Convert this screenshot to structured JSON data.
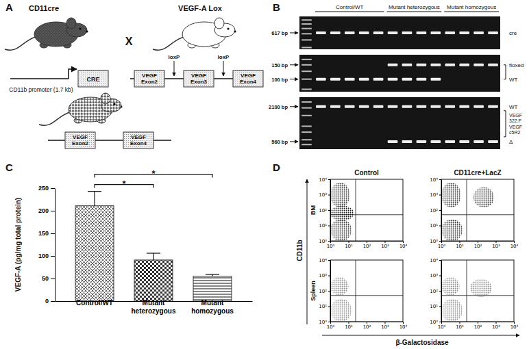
{
  "panel_a": {
    "label": "A",
    "parent1": {
      "name": "CD11cre",
      "promoter": "CD11b promoter (1.7 kb)",
      "gene": "CRE"
    },
    "cross": "X",
    "parent2": {
      "name": "VEGF-A Lox",
      "exons": [
        "VEGF Exon2",
        "VEGF Exon3",
        "VEGF Exon4"
      ],
      "sites": [
        "loxP",
        "loxP"
      ]
    },
    "offspring": {
      "exons": [
        "VEGF Exon2",
        "VEGF Exon4"
      ]
    }
  },
  "panel_b": {
    "label": "B",
    "groups": [
      {
        "name": "Control/WT",
        "lanes": 5
      },
      {
        "name": "Mutant heterozygous",
        "lanes": 4
      },
      {
        "name": "Mutant homozygous",
        "lanes": 4
      }
    ],
    "gels": [
      {
        "ylim": [
          1000,
          380
        ],
        "ladder": [
          900,
          800,
          700,
          600,
          500,
          400
        ],
        "size_labels": [
          {
            "value": 617,
            "label": "617 bp"
          }
        ],
        "band_labels": [
          {
            "value": 617,
            "label": "cre"
          }
        ],
        "lanes": [
          [
            617
          ],
          [
            617
          ],
          [
            617
          ],
          [
            617
          ],
          [
            617
          ],
          [
            617
          ],
          [
            617
          ],
          [
            617
          ],
          [
            617
          ],
          [
            617
          ],
          [
            617
          ],
          [
            617
          ],
          [
            617
          ]
        ]
      },
      {
        "ylim": [
          200,
          70
        ],
        "ladder": [
          175,
          150,
          125,
          100,
          75
        ],
        "size_labels": [
          {
            "value": 150,
            "label": "150 bp"
          },
          {
            "value": 100,
            "label": "100 bp"
          }
        ],
        "band_labels": [
          {
            "value": 150,
            "label": "floxed"
          },
          {
            "value": 100,
            "label": "WT"
          }
        ],
        "lanes": [
          [
            100
          ],
          [
            100
          ],
          [
            100
          ],
          [
            100
          ],
          [
            100
          ],
          [
            150,
            100
          ],
          [
            150,
            100
          ],
          [
            150,
            100
          ],
          [
            150,
            100
          ],
          [
            150
          ],
          [
            150
          ],
          [
            150
          ],
          [
            150
          ]
        ]
      },
      {
        "ylim": [
          3000,
          420
        ],
        "ladder": [
          2500,
          2000,
          1500,
          1000,
          800,
          600,
          500
        ],
        "size_labels": [
          {
            "value": 2100,
            "label": "2100 bp"
          },
          {
            "value": 560,
            "label": "560 bp"
          }
        ],
        "band_labels": [
          {
            "value": 2100,
            "label": "WT"
          },
          {
            "value": 560,
            "label": "Δ"
          }
        ],
        "primers": [
          "VEGF 322.F",
          "VEGF c5R2"
        ],
        "lanes": [
          [
            2100
          ],
          [
            2100
          ],
          [
            2100
          ],
          [
            2100
          ],
          [
            2100
          ],
          [
            2100,
            560
          ],
          [
            2100,
            560
          ],
          [
            2100,
            560
          ],
          [
            2100,
            560
          ],
          [
            2100,
            560
          ],
          [
            2100,
            560
          ],
          [
            2100,
            560
          ],
          [
            2100,
            560
          ]
        ]
      }
    ]
  },
  "panel_c": {
    "label": "C"
  },
  "chart_data": {
    "type": "bar",
    "categories": [
      "Control/WT",
      "Mutant heterozygous",
      "Mutant homozygous"
    ],
    "values": [
      211,
      91,
      55
    ],
    "errors": [
      32,
      15,
      4
    ],
    "ylabel": "VEGF-A (pg/mg total protein)",
    "ylim": [
      0,
      250
    ],
    "yticks": [
      0,
      50,
      100,
      150,
      200,
      250
    ],
    "color": "#333333",
    "annotations": [
      {
        "between": [
          "Control/WT",
          "Mutant heterozygous"
        ],
        "label": "*"
      },
      {
        "between": [
          "Control/WT",
          "Mutant homozygous"
        ],
        "label": "*"
      }
    ]
  },
  "panel_d": {
    "label": "D",
    "columns": [
      "Control",
      "CD11cre+LacZ"
    ],
    "rows": [
      "BM",
      "Spleen"
    ],
    "xlabel": "β-Galactosidase",
    "ylabel": "CD11b",
    "xlim": [
      1,
      10000
    ],
    "ylim": [
      1,
      10000
    ],
    "xticks": [
      {
        "value": 1,
        "label": "10⁰"
      },
      {
        "value": 10,
        "label": "10¹"
      },
      {
        "value": 100,
        "label": "10²"
      },
      {
        "value": 1000,
        "label": "10³"
      },
      {
        "value": 10000,
        "label": "10⁴"
      }
    ],
    "yticks": [
      {
        "value": 1,
        "label": "10⁰"
      },
      {
        "value": 10,
        "label": "10¹"
      },
      {
        "value": 100,
        "label": "10²"
      },
      {
        "value": 1000,
        "label": "10³"
      },
      {
        "value": 10000,
        "label": "10⁴"
      }
    ],
    "gates": {
      "x": 25,
      "y": 50
    },
    "plots": [
      {
        "row": "BM",
        "column": "Control",
        "color": "#1a1a1a",
        "populations": [
          {
            "x": [
              1,
              12
            ],
            "y": [
              150,
              6000
            ]
          },
          {
            "x": [
              1,
              15
            ],
            "y": [
              1,
              25
            ]
          },
          {
            "x": [
              1,
              20
            ],
            "y": [
              20,
              200
            ]
          }
        ]
      },
      {
        "row": "BM",
        "column": "CD11cre+LacZ",
        "color": "#1a1a1a",
        "populations": [
          {
            "x": [
              1,
              12
            ],
            "y": [
              150,
              6000
            ]
          },
          {
            "x": [
              1,
              15
            ],
            "y": [
              1,
              25
            ]
          },
          {
            "x": [
              60,
              800
            ],
            "y": [
              150,
              3000
            ]
          }
        ]
      },
      {
        "row": "Spleen",
        "column": "Control",
        "color": "#888888",
        "populations": [
          {
            "x": [
              1,
              15
            ],
            "y": [
              1,
              30
            ]
          },
          {
            "x": [
              1,
              10
            ],
            "y": [
              50,
              800
            ]
          }
        ]
      },
      {
        "row": "Spleen",
        "column": "CD11cre+LacZ",
        "color": "#888888",
        "populations": [
          {
            "x": [
              1,
              15
            ],
            "y": [
              1,
              30
            ]
          },
          {
            "x": [
              1,
              10
            ],
            "y": [
              50,
              800
            ]
          },
          {
            "x": [
              40,
              600
            ],
            "y": [
              40,
              600
            ]
          }
        ]
      }
    ]
  }
}
